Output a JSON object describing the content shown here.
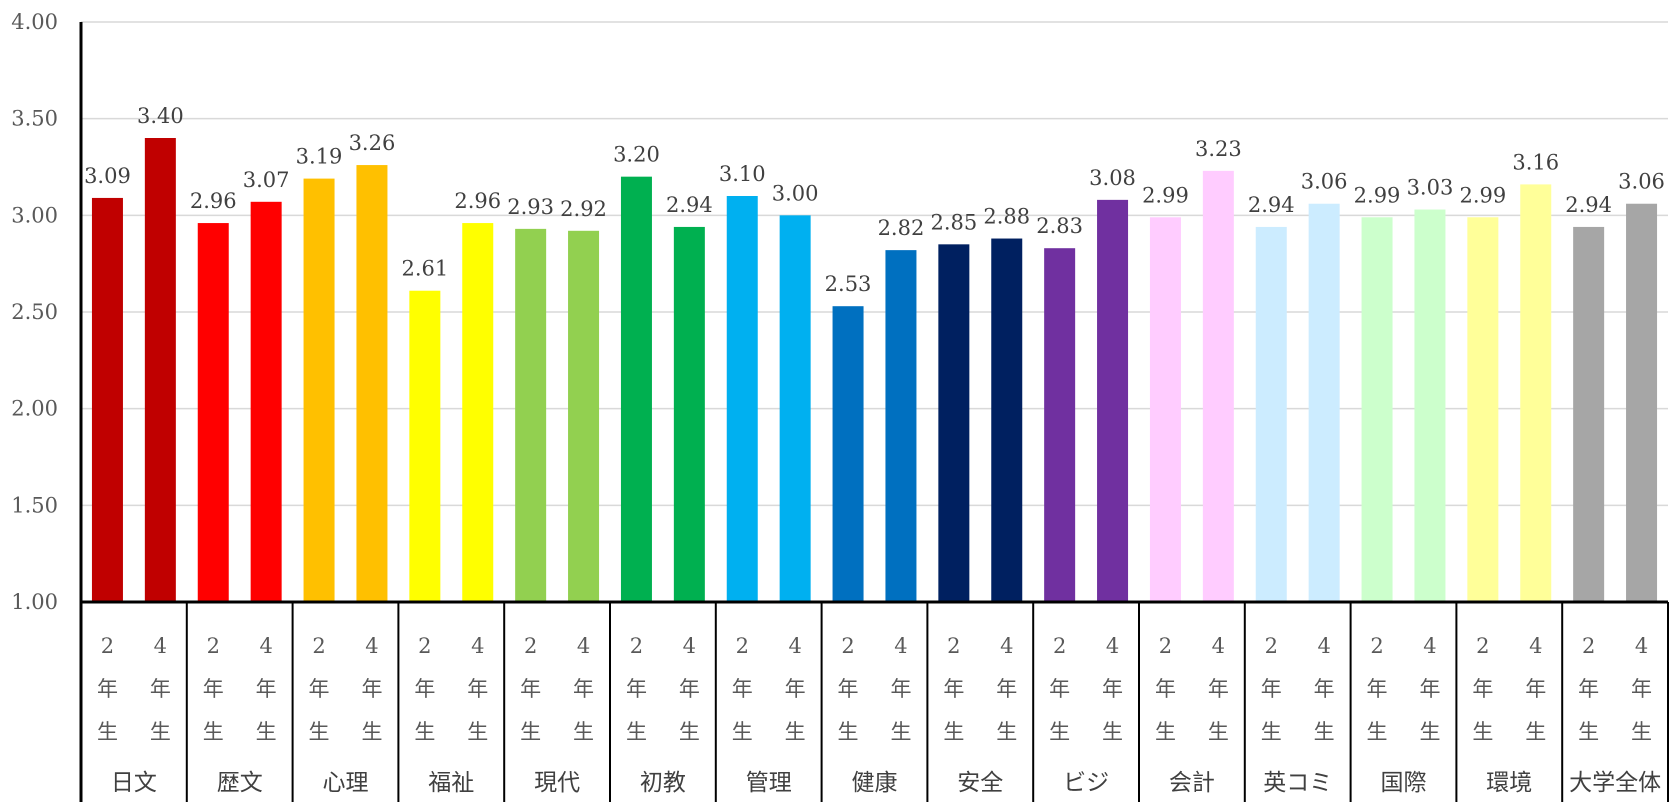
{
  "chart_data": {
    "type": "bar",
    "title": "",
    "xlabel": "",
    "ylabel": "",
    "ylim": [
      1.0,
      4.0
    ],
    "yticks": [
      "1.00",
      "1.50",
      "2.00",
      "2.50",
      "3.00",
      "3.50",
      "4.00"
    ],
    "grid": true,
    "legend": "none",
    "groups": [
      {
        "name": "日文",
        "values": [
          3.09,
          3.4
        ],
        "labels": [
          "3.09",
          "3.40"
        ],
        "color": "#C00000"
      },
      {
        "name": "歴文",
        "values": [
          2.96,
          3.07
        ],
        "labels": [
          "2.96",
          "3.07"
        ],
        "color": "#FF0000"
      },
      {
        "name": "心理",
        "values": [
          3.19,
          3.26
        ],
        "labels": [
          "3.19",
          "3.26"
        ],
        "color": "#FFC000"
      },
      {
        "name": "福祉",
        "values": [
          2.61,
          2.96
        ],
        "labels": [
          "2.61",
          "2.96"
        ],
        "color": "#FFFF00"
      },
      {
        "name": "現代",
        "values": [
          2.93,
          2.92
        ],
        "labels": [
          "2.93",
          "2.92"
        ],
        "color": "#92D050"
      },
      {
        "name": "初教",
        "values": [
          3.2,
          2.94
        ],
        "labels": [
          "3.20",
          "2.94"
        ],
        "color": "#00B050"
      },
      {
        "name": "管理",
        "values": [
          3.1,
          3.0
        ],
        "labels": [
          "3.10",
          "3.00"
        ],
        "color": "#00B0F0"
      },
      {
        "name": "健康",
        "values": [
          2.53,
          2.82
        ],
        "labels": [
          "2.53",
          "2.82"
        ],
        "color": "#0070C0"
      },
      {
        "name": "安全",
        "values": [
          2.85,
          2.88
        ],
        "labels": [
          "2.85",
          "2.88"
        ],
        "color": "#002060"
      },
      {
        "name": "ビジ",
        "values": [
          2.83,
          3.08
        ],
        "labels": [
          "2.83",
          "3.08"
        ],
        "color": "#7030A0"
      },
      {
        "name": "会計",
        "values": [
          2.99,
          3.23
        ],
        "labels": [
          "2.99",
          "3.23"
        ],
        "color": "#FFCCFF"
      },
      {
        "name": "英コミ",
        "values": [
          2.94,
          3.06
        ],
        "labels": [
          "2.94",
          "3.06"
        ],
        "color": "#CCECFF"
      },
      {
        "name": "国際",
        "values": [
          2.99,
          3.03
        ],
        "labels": [
          "2.99",
          "3.03"
        ],
        "color": "#CCFFCC"
      },
      {
        "name": "環境",
        "values": [
          2.99,
          3.16
        ],
        "labels": [
          "2.99",
          "3.16"
        ],
        "color": "#FFFF99"
      },
      {
        "name": "大学全体",
        "values": [
          2.94,
          3.06
        ],
        "labels": [
          "2.94",
          "3.06"
        ],
        "color": "#A6A6A6"
      }
    ],
    "subcategories": [
      [
        "2",
        "年",
        "生"
      ],
      [
        "4",
        "年",
        "生"
      ]
    ]
  }
}
